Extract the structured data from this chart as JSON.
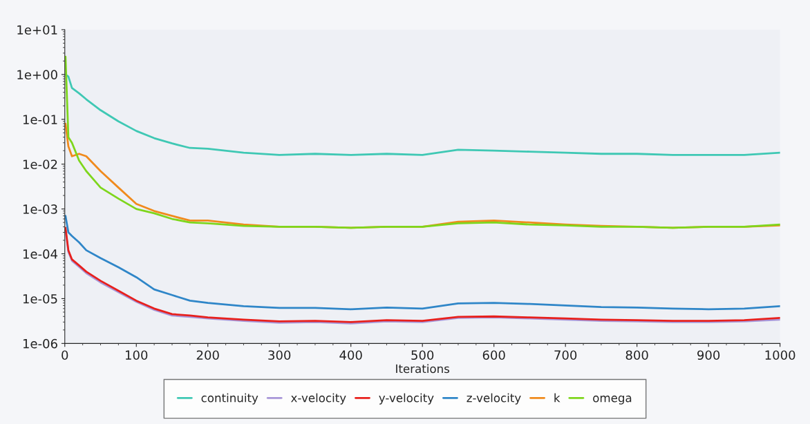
{
  "chart_data": {
    "type": "line",
    "xlabel": "Iterations",
    "log": "y",
    "grid": false,
    "legend": "bottom",
    "marker": "none",
    "line_style": "solid",
    "xlim": [
      0,
      1000
    ],
    "xticks": [
      0,
      100,
      200,
      300,
      400,
      500,
      600,
      700,
      800,
      900,
      1000
    ],
    "ylim": [
      1e-06,
      10
    ],
    "yticks": [
      {
        "value": 10,
        "label": "1e+01"
      },
      {
        "value": 1,
        "label": "1e+00"
      },
      {
        "value": 0.1,
        "label": "1e-01"
      },
      {
        "value": 0.01,
        "label": "1e-02"
      },
      {
        "value": 0.001,
        "label": "1e-03"
      },
      {
        "value": 0.0001,
        "label": "1e-04"
      },
      {
        "value": 1e-05,
        "label": "1e-05"
      },
      {
        "value": 1e-06,
        "label": "1e-06"
      }
    ],
    "x": [
      1,
      5,
      10,
      20,
      30,
      50,
      75,
      100,
      125,
      150,
      175,
      200,
      250,
      300,
      350,
      400,
      450,
      500,
      550,
      600,
      650,
      700,
      750,
      800,
      850,
      900,
      950,
      1000
    ],
    "series": [
      {
        "name": "continuity",
        "color": "#3fc8b4",
        "values": [
          1.0,
          0.9,
          0.5,
          0.38,
          0.28,
          0.16,
          0.09,
          0.055,
          0.038,
          0.029,
          0.023,
          0.022,
          0.018,
          0.016,
          0.017,
          0.016,
          0.017,
          0.016,
          0.021,
          0.02,
          0.019,
          0.018,
          0.017,
          0.017,
          0.016,
          0.016,
          0.016,
          0.018
        ]
      },
      {
        "name": "x-velocity",
        "color": "#a896d8",
        "values": [
          0.00035,
          0.00011,
          7e-05,
          5.1e-05,
          3.7e-05,
          2.3e-05,
          1.4e-05,
          8.5e-06,
          5.6e-06,
          4.2e-06,
          3.9e-06,
          3.6e-06,
          3.2e-06,
          2.9e-06,
          3e-06,
          2.8e-06,
          3.1e-06,
          3e-06,
          3.7e-06,
          3.8e-06,
          3.6e-06,
          3.4e-06,
          3.2e-06,
          3.1e-06,
          3e-06,
          3e-06,
          3.1e-06,
          3.4e-06
        ]
      },
      {
        "name": "y-velocity",
        "color": "#e8201c",
        "values": [
          0.00038,
          0.00012,
          7.5e-05,
          5.5e-05,
          4e-05,
          2.5e-05,
          1.5e-05,
          9e-06,
          6e-06,
          4.5e-06,
          4.2e-06,
          3.8e-06,
          3.4e-06,
          3.1e-06,
          3.2e-06,
          3e-06,
          3.3e-06,
          3.2e-06,
          3.9e-06,
          4e-06,
          3.8e-06,
          3.6e-06,
          3.4e-06,
          3.3e-06,
          3.2e-06,
          3.2e-06,
          3.3e-06,
          3.7e-06
        ]
      },
      {
        "name": "z-velocity",
        "color": "#2f86c8",
        "values": [
          0.0007,
          0.0003,
          0.00025,
          0.00018,
          0.00012,
          8e-05,
          5e-05,
          3e-05,
          1.6e-05,
          1.2e-05,
          9e-06,
          8e-06,
          6.8e-06,
          6.2e-06,
          6.2e-06,
          5.8e-06,
          6.3e-06,
          6e-06,
          7.8e-06,
          8e-06,
          7.6e-06,
          7e-06,
          6.5e-06,
          6.3e-06,
          6e-06,
          5.8e-06,
          6e-06,
          6.8e-06
        ]
      },
      {
        "name": "k",
        "color": "#f08a1c",
        "values": [
          0.08,
          0.025,
          0.015,
          0.017,
          0.015,
          0.007,
          0.003,
          0.0013,
          0.0009,
          0.0007,
          0.00055,
          0.00055,
          0.00045,
          0.0004,
          0.0004,
          0.00038,
          0.0004,
          0.0004,
          0.00052,
          0.00055,
          0.0005,
          0.00045,
          0.00042,
          0.0004,
          0.00038,
          0.0004,
          0.0004,
          0.00043
        ]
      },
      {
        "name": "omega",
        "color": "#7ed61c",
        "values": [
          2.5,
          0.04,
          0.03,
          0.012,
          0.007,
          0.003,
          0.0017,
          0.001,
          0.0008,
          0.0006,
          0.0005,
          0.00048,
          0.00042,
          0.0004,
          0.0004,
          0.00038,
          0.0004,
          0.0004,
          0.00048,
          0.0005,
          0.00045,
          0.00043,
          0.0004,
          0.0004,
          0.00038,
          0.0004,
          0.0004,
          0.00045
        ]
      }
    ]
  }
}
